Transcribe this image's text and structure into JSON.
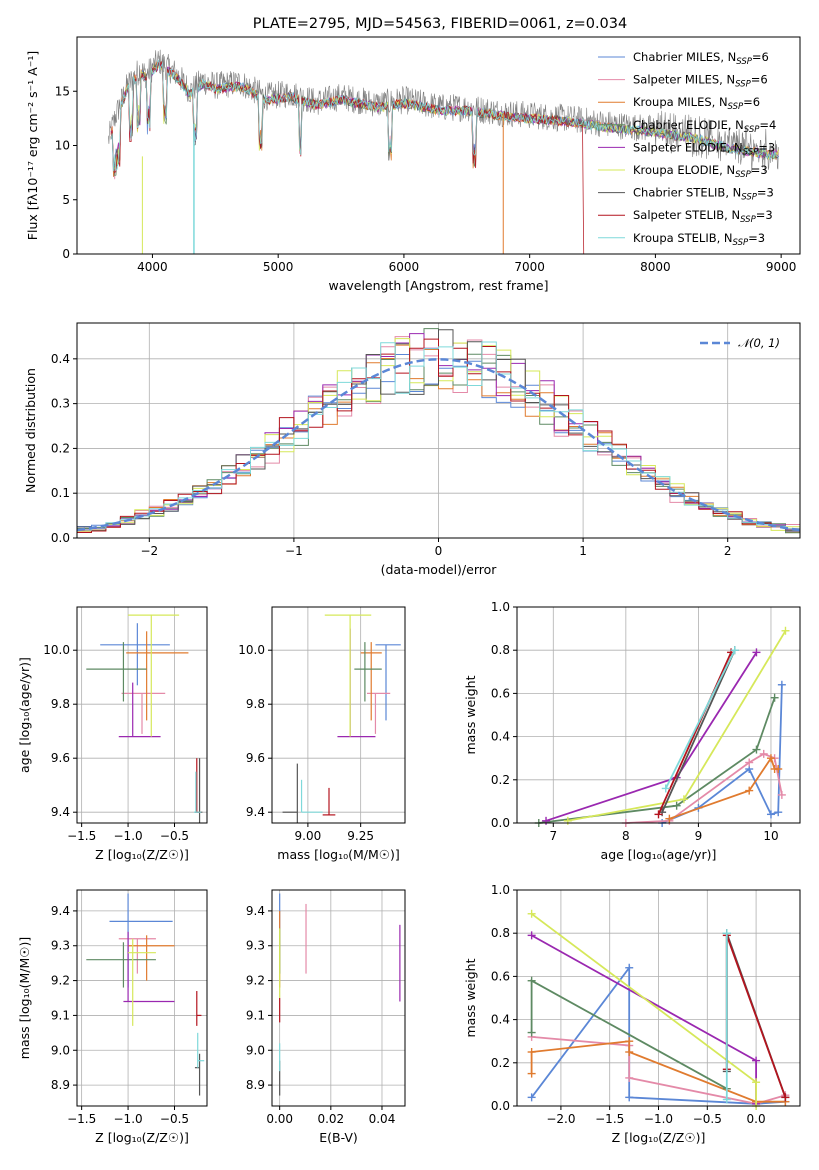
{
  "figure_title": "PLATE=2795, MJD=54563, FIBERID=0061, z=0.034",
  "colors": {
    "Chabrier MILES": "#5b87d6",
    "Salpeter MILES": "#e48aa8",
    "Kroupa MILES": "#e07b2f",
    "Chabrier ELODIE": "#5e8a63",
    "Salpeter ELODIE": "#9a28b0",
    "Kroupa ELODIE": "#d6e85a",
    "Chabrier STELIB": "#555555",
    "Salpeter STELIB": "#b3141e",
    "Kroupa STELIB": "#7fd9da",
    "gaussian": "#5b87d6"
  },
  "chart_data": [
    {
      "id": "spectrum",
      "type": "line",
      "title": "PLATE=2795, MJD=54563, FIBERID=0061, z=0.034",
      "xlabel": "wavelength [Angstrom, rest frame]",
      "ylabel": "Flux [fλ10⁻¹⁷ erg cm⁻² s⁻¹ A⁻¹]",
      "xlim": [
        3400,
        9150
      ],
      "ylim": [
        0,
        20
      ],
      "xticks": [
        4000,
        5000,
        6000,
        7000,
        8000,
        9000
      ],
      "yticks": [
        0,
        5,
        10,
        15
      ],
      "grid": false,
      "legend_position": "top-right",
      "data_x": [
        3650,
        3700,
        3800,
        3900,
        3950,
        4050,
        4200,
        4300,
        4400,
        4500,
        4700,
        4900,
        5100,
        5300,
        5500,
        5800,
        6000,
        6300,
        6500,
        6800,
        7000,
        7300,
        7600,
        8000,
        8300,
        8600,
        8900
      ],
      "data_y": [
        10.5,
        12.5,
        15.5,
        17.0,
        16.5,
        17.8,
        16.5,
        15.0,
        16.0,
        15.5,
        15.8,
        14.5,
        14.8,
        14.0,
        14.5,
        13.8,
        14.2,
        13.5,
        13.5,
        13.0,
        12.8,
        12.5,
        12.0,
        11.5,
        11.0,
        10.0,
        9.5
      ],
      "series": [
        {
          "name": "Chabrier MILES, N_SSP=6",
          "model": "Chabrier MILES"
        },
        {
          "name": "Salpeter MILES, N_SSP=6",
          "model": "Salpeter MILES"
        },
        {
          "name": "Kroupa MILES, N_SSP=6",
          "model": "Kroupa MILES"
        },
        {
          "name": "Chabrier ELODIE, N_SSP=4",
          "model": "Chabrier ELODIE"
        },
        {
          "name": "Salpeter ELODIE, N_SSP=3",
          "model": "Salpeter ELODIE"
        },
        {
          "name": "Kroupa ELODIE, N_SSP=3",
          "model": "Kroupa ELODIE"
        },
        {
          "name": "Chabrier STELIB, N_SSP=3",
          "model": "Chabrier STELIB"
        },
        {
          "name": "Salpeter STELIB, N_SSP=3",
          "model": "Salpeter STELIB"
        },
        {
          "name": "Kroupa STELIB, N_SSP=3",
          "model": "Kroupa STELIB"
        }
      ]
    },
    {
      "id": "residuals",
      "type": "line",
      "xlabel": "(data-model)/error",
      "ylabel": "Normed distribution",
      "xlim": [
        -2.5,
        2.5
      ],
      "ylim": [
        0,
        0.48
      ],
      "xticks": [
        -2,
        -1,
        0,
        1,
        2
      ],
      "yticks": [
        0.0,
        0.1,
        0.2,
        0.3,
        0.4
      ],
      "grid": true,
      "legend_position": "top-right",
      "gaussian_label": "𝒩(0, 1)",
      "bin_edges_start": -2.5,
      "bin_width": 0.1
    },
    {
      "id": "age_vs_Z",
      "type": "scatter",
      "xlabel": "Z [log₁₀(Z/Z☉)]",
      "ylabel": "age  [log₁₀(age/yr)]",
      "xlim": [
        -1.55,
        -0.15
      ],
      "ylim": [
        9.36,
        10.16
      ],
      "xticks": [
        -1.5,
        -1.0,
        -0.5
      ],
      "yticks": [
        9.4,
        9.6,
        9.8,
        10.0
      ],
      "grid": true,
      "points": [
        {
          "model": "Chabrier MILES",
          "x": -0.9,
          "y": 10.02,
          "xerr": [
            0.4,
            0.35
          ],
          "yerr": [
            0.15,
            0.08
          ]
        },
        {
          "model": "Salpeter MILES",
          "x": -0.85,
          "y": 9.84,
          "xerr": [
            0.22,
            0.25
          ],
          "yerr": [
            0.15,
            0.0
          ]
        },
        {
          "model": "Kroupa MILES",
          "x": -0.8,
          "y": 9.99,
          "xerr": [
            0.22,
            0.45
          ],
          "yerr": [
            0.25,
            0.08
          ]
        },
        {
          "model": "Chabrier ELODIE",
          "x": -1.05,
          "y": 9.93,
          "xerr": [
            0.4,
            0.25
          ],
          "yerr": [
            0.12,
            0.1
          ]
        },
        {
          "model": "Salpeter ELODIE",
          "x": -0.95,
          "y": 9.68,
          "xerr": [
            0.15,
            0.3
          ],
          "yerr": [
            0.0,
            0.2
          ]
        },
        {
          "model": "Kroupa ELODIE",
          "x": -0.75,
          "y": 10.13,
          "xerr": [
            0.25,
            0.3
          ],
          "yerr": [
            0.45,
            0.0
          ]
        },
        {
          "model": "Chabrier STELIB",
          "x": -0.23,
          "y": 9.4,
          "xerr": [
            0.03,
            0.03
          ],
          "yerr": [
            0.05,
            0.2
          ]
        },
        {
          "model": "Salpeter STELIB",
          "x": -0.26,
          "y": 9.4,
          "xerr": [
            0.02,
            0.05
          ],
          "yerr": [
            0.0,
            0.2
          ]
        },
        {
          "model": "Kroupa STELIB",
          "x": -0.27,
          "y": 9.4,
          "xerr": [
            0.02,
            0.06
          ],
          "yerr": [
            0.0,
            0.15
          ]
        }
      ]
    },
    {
      "id": "age_vs_mass",
      "type": "scatter",
      "xlabel": "mass [log₁₀(M/M☉)]",
      "xlim": [
        8.83,
        9.46
      ],
      "ylim": [
        9.36,
        10.16
      ],
      "xticks": [
        9.0,
        9.25
      ],
      "yticks": [
        9.4,
        9.6,
        9.8,
        10.0
      ],
      "grid": true,
      "points": [
        {
          "model": "Chabrier MILES",
          "x": 9.37,
          "y": 10.02,
          "xerr": [
            0.05,
            0.07
          ],
          "yerr": [
            0.28,
            0.0
          ]
        },
        {
          "model": "Salpeter MILES",
          "x": 9.32,
          "y": 9.84,
          "xerr": [
            0.04,
            0.07
          ],
          "yerr": [
            0.15,
            0.0
          ]
        },
        {
          "model": "Kroupa MILES",
          "x": 9.3,
          "y": 9.99,
          "xerr": [
            0.05,
            0.05
          ],
          "yerr": [
            0.25,
            0.04
          ]
        },
        {
          "model": "Chabrier ELODIE",
          "x": 9.27,
          "y": 9.93,
          "xerr": [
            0.05,
            0.08
          ],
          "yerr": [
            0.12,
            0.1
          ]
        },
        {
          "model": "Salpeter ELODIE",
          "x": 9.2,
          "y": 9.68,
          "xerr": [
            0.06,
            0.12
          ],
          "yerr": [
            0.0,
            0.4
          ]
        },
        {
          "model": "Kroupa ELODIE",
          "x": 9.2,
          "y": 10.13,
          "xerr": [
            0.12,
            0.1
          ],
          "yerr": [
            0.45,
            0.0
          ]
        },
        {
          "model": "Chabrier STELIB",
          "x": 8.95,
          "y": 9.4,
          "xerr": [
            0.07,
            0.0
          ],
          "yerr": [
            0.05,
            0.18
          ]
        },
        {
          "model": "Salpeter STELIB",
          "x": 9.1,
          "y": 9.39,
          "xerr": [
            0.03,
            0.03
          ],
          "yerr": [
            0.0,
            0.1
          ]
        },
        {
          "model": "Kroupa STELIB",
          "x": 8.97,
          "y": 9.4,
          "xerr": [
            0.0,
            0.1
          ],
          "yerr": [
            0.0,
            0.12
          ]
        }
      ]
    },
    {
      "id": "weight_vs_age",
      "type": "line",
      "xlabel": "age  [log₁₀(age/yr)]",
      "ylabel": "mass weight",
      "xlim": [
        6.5,
        10.4
      ],
      "ylim": [
        0,
        1.0
      ],
      "xticks": [
        7,
        8,
        9,
        10
      ],
      "yticks": [
        0.0,
        0.2,
        0.4,
        0.6,
        0.8,
        1.0
      ],
      "grid": true,
      "series": [
        {
          "model": "Chabrier MILES",
          "x": [
            8.5,
            9.0,
            9.7,
            10.0,
            10.1,
            10.15
          ],
          "y": [
            0.0,
            0.07,
            0.25,
            0.04,
            0.05,
            0.64
          ]
        },
        {
          "model": "Salpeter MILES",
          "x": [
            8.0,
            8.6,
            9.7,
            9.9,
            10.05,
            10.15
          ],
          "y": [
            0.0,
            0.01,
            0.28,
            0.32,
            0.3,
            0.13
          ]
        },
        {
          "model": "Kroupa MILES",
          "x": [
            8.6,
            9.7,
            10.0,
            10.05,
            10.1
          ],
          "y": [
            0.02,
            0.15,
            0.3,
            0.25,
            0.25
          ]
        },
        {
          "model": "Chabrier ELODIE",
          "x": [
            6.8,
            8.7,
            9.8,
            10.05
          ],
          "y": [
            0.0,
            0.08,
            0.34,
            0.58
          ]
        },
        {
          "model": "Salpeter ELODIE",
          "x": [
            6.9,
            8.7,
            9.8
          ],
          "y": [
            0.01,
            0.21,
            0.79
          ]
        },
        {
          "model": "Kroupa ELODIE",
          "x": [
            7.2,
            8.8,
            10.2
          ],
          "y": [
            0.01,
            0.11,
            0.89
          ]
        },
        {
          "model": "Chabrier STELIB",
          "x": [
            8.5,
            9.5
          ],
          "y": [
            0.05,
            0.8
          ]
        },
        {
          "model": "Salpeter STELIB",
          "x": [
            8.45,
            9.45
          ],
          "y": [
            0.04,
            0.79
          ]
        },
        {
          "model": "Kroupa STELIB",
          "x": [
            8.55,
            9.5
          ],
          "y": [
            0.16,
            0.8
          ]
        }
      ]
    },
    {
      "id": "mass_vs_Z",
      "type": "scatter",
      "xlabel": "Z [log₁₀(Z/Z☉)]",
      "ylabel": "mass [log₁₀(M/M☉)]",
      "xlim": [
        -1.55,
        -0.15
      ],
      "ylim": [
        8.84,
        9.46
      ],
      "xticks": [
        -1.5,
        -1.0,
        -0.5
      ],
      "yticks": [
        8.9,
        9.0,
        9.1,
        9.2,
        9.3,
        9.4
      ],
      "grid": true,
      "points": [
        {
          "model": "Chabrier MILES",
          "x": -1.0,
          "y": 9.37,
          "xerr": [
            0.2,
            0.48
          ],
          "yerr": [
            0.19,
            0.08
          ]
        },
        {
          "model": "Salpeter MILES",
          "x": -0.9,
          "y": 9.32,
          "xerr": [
            0.2,
            0.2
          ],
          "yerr": [
            0.1,
            0.0
          ]
        },
        {
          "model": "Kroupa MILES",
          "x": -0.8,
          "y": 9.3,
          "xerr": [
            0.2,
            0.3
          ],
          "yerr": [
            0.1,
            0.03
          ]
        },
        {
          "model": "Chabrier ELODIE",
          "x": -1.05,
          "y": 9.26,
          "xerr": [
            0.4,
            0.35
          ],
          "yerr": [
            0.08,
            0.05
          ]
        },
        {
          "model": "Salpeter ELODIE",
          "x": -1.0,
          "y": 9.14,
          "xerr": [
            0.05,
            0.5
          ],
          "yerr": [
            0.0,
            0.2
          ]
        },
        {
          "model": "Kroupa ELODIE",
          "x": -0.95,
          "y": 9.28,
          "xerr": [
            0.05,
            0.25
          ],
          "yerr": [
            0.21,
            0.04
          ]
        },
        {
          "model": "Chabrier STELIB",
          "x": -0.23,
          "y": 8.95,
          "xerr": [
            0.05,
            0.0
          ],
          "yerr": [
            0.08,
            0.04
          ]
        },
        {
          "model": "Salpeter STELIB",
          "x": -0.26,
          "y": 9.1,
          "xerr": [
            0.0,
            0.05
          ],
          "yerr": [
            0.03,
            0.07
          ]
        },
        {
          "model": "Kroupa STELIB",
          "x": -0.25,
          "y": 8.97,
          "xerr": [
            0.0,
            0.07
          ],
          "yerr": [
            0.02,
            0.08
          ]
        }
      ]
    },
    {
      "id": "mass_vs_ebv",
      "type": "scatter",
      "xlabel": "E(B-V)",
      "xlim": [
        -0.003,
        0.049
      ],
      "ylim": [
        8.84,
        9.46
      ],
      "xticks": [
        0.0,
        0.02,
        0.04
      ],
      "yticks": [
        8.9,
        9.0,
        9.1,
        9.2,
        9.3,
        9.4
      ],
      "grid": true,
      "points": [
        {
          "model": "Chabrier MILES",
          "x": 0.0,
          "y": 9.37,
          "yerr": [
            0.15,
            0.08
          ]
        },
        {
          "model": "Salpeter MILES",
          "x": 0.0103,
          "y": 9.32,
          "yerr": [
            0.1,
            0.1
          ]
        },
        {
          "model": "Kroupa MILES",
          "x": 0.0,
          "y": 9.3,
          "yerr": [
            0.12,
            0.1
          ]
        },
        {
          "model": "Chabrier ELODIE",
          "x": 0.0,
          "y": 9.3,
          "yerr": [
            0.08,
            0.05
          ]
        },
        {
          "model": "Salpeter ELODIE",
          "x": 0.047,
          "y": 9.25,
          "yerr": [
            0.11,
            0.11
          ]
        },
        {
          "model": "Kroupa ELODIE",
          "x": 0.0,
          "y": 9.25,
          "yerr": [
            0.1,
            0.1
          ]
        },
        {
          "model": "Chabrier STELIB",
          "x": 0.0,
          "y": 8.92,
          "yerr": [
            0.05,
            0.05
          ]
        },
        {
          "model": "Salpeter STELIB",
          "x": 0.0,
          "y": 9.1,
          "yerr": [
            0.02,
            0.05
          ]
        },
        {
          "model": "Kroupa STELIB",
          "x": 0.0,
          "y": 8.97,
          "yerr": [
            0.03,
            0.05
          ]
        }
      ]
    },
    {
      "id": "weight_vs_Z",
      "type": "line",
      "xlabel": "Z [log₁₀(Z/Z☉)]",
      "ylabel": "mass weight",
      "xlim": [
        -2.45,
        0.45
      ],
      "ylim": [
        0,
        1.0
      ],
      "xticks": [
        -2.0,
        -1.5,
        -1.0,
        -0.5,
        0.0
      ],
      "yticks": [
        0.0,
        0.2,
        0.4,
        0.6,
        0.8,
        1.0
      ],
      "grid": true,
      "series": [
        {
          "model": "Chabrier MILES",
          "x": [
            -2.3,
            -1.3,
            -1.3,
            0.0,
            0.3
          ],
          "y": [
            0.04,
            0.64,
            0.04,
            0.01,
            0.02
          ]
        },
        {
          "model": "Salpeter MILES",
          "x": [
            -2.3,
            -1.3,
            -1.3,
            0.0,
            0.3
          ],
          "y": [
            0.32,
            0.28,
            0.13,
            0.01,
            0.05
          ]
        },
        {
          "model": "Kroupa MILES",
          "x": [
            -2.3,
            -2.3,
            -1.3,
            -1.3,
            0.0,
            0.3
          ],
          "y": [
            0.15,
            0.25,
            0.3,
            0.25,
            0.02,
            0.02
          ]
        },
        {
          "model": "Chabrier ELODIE",
          "x": [
            -2.3,
            -2.3,
            -0.3
          ],
          "y": [
            0.34,
            0.58,
            0.08
          ]
        },
        {
          "model": "Salpeter ELODIE",
          "x": [
            -2.3,
            0.0,
            0.0
          ],
          "y": [
            0.79,
            0.21,
            0.01
          ]
        },
        {
          "model": "Kroupa ELODIE",
          "x": [
            -2.3,
            0.0,
            0.0
          ],
          "y": [
            0.89,
            0.11,
            0.0
          ]
        },
        {
          "model": "Chabrier STELIB",
          "x": [
            -0.3,
            -0.3,
            0.3
          ],
          "y": [
            0.16,
            0.8,
            0.04
          ]
        },
        {
          "model": "Salpeter STELIB",
          "x": [
            -0.3,
            -0.3,
            0.3
          ],
          "y": [
            0.17,
            0.79,
            0.04
          ]
        },
        {
          "model": "Kroupa STELIB",
          "x": [
            -0.3,
            -0.3
          ],
          "y": [
            0.03,
            0.8
          ]
        }
      ]
    }
  ]
}
